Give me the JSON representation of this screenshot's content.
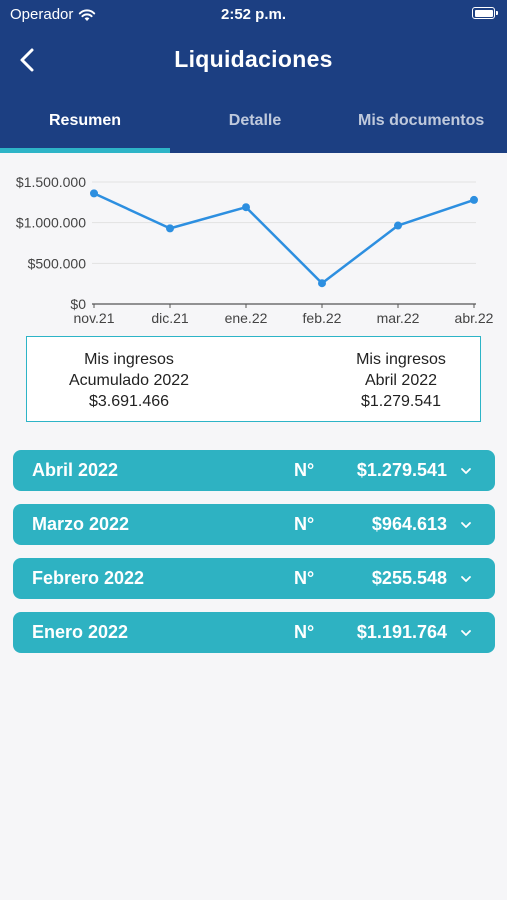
{
  "status_bar": {
    "carrier": "Operador",
    "time": "2:52 p.m."
  },
  "header": {
    "title": "Liquidaciones"
  },
  "tabs": [
    {
      "label": "Resumen",
      "active": true
    },
    {
      "label": "Detalle",
      "active": false
    },
    {
      "label": "Mis documentos",
      "active": false
    }
  ],
  "chart_data": {
    "type": "line",
    "categories": [
      "nov.21",
      "dic.21",
      "ene.22",
      "feb.22",
      "mar.22",
      "abr.22"
    ],
    "values": [
      1360000,
      930000,
      1190000,
      255548,
      964613,
      1279541
    ],
    "y_ticks": [
      "$1.500.000",
      "$1.000.000",
      "$500.000",
      "$0"
    ],
    "ylim": [
      0,
      1500000
    ],
    "line_color": "#2d8fe0"
  },
  "summary": {
    "left": {
      "line1": "Mis ingresos",
      "line2": "Acumulado 2022",
      "amount": "$3.691.466"
    },
    "right": {
      "line1": "Mis ingresos",
      "line2": "Abril 2022",
      "amount": "$1.279.541"
    }
  },
  "months": [
    {
      "name": "Abril 2022",
      "no_label": "N°",
      "amount": "$1.279.541"
    },
    {
      "name": "Marzo 2022",
      "no_label": "N°",
      "amount": "$964.613"
    },
    {
      "name": "Febrero 2022",
      "no_label": "N°",
      "amount": "$255.548"
    },
    {
      "name": "Enero 2022",
      "no_label": "N°",
      "amount": "$1.191.764"
    }
  ],
  "colors": {
    "header": "#1c3f82",
    "accent": "#2db4c7",
    "row": "#2eb2c2"
  }
}
